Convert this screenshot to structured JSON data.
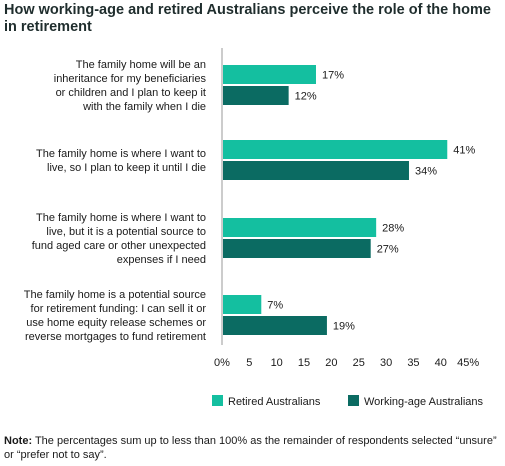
{
  "chart_data": {
    "type": "bar",
    "orientation": "horizontal",
    "title": "How working-age and retired Australians perceive the role of the home in retirement",
    "categories": [
      [
        "The family home will be an",
        "inheritance for my beneficiaries",
        "or children and I plan to keep it",
        "with the family when I die"
      ],
      [
        "The family home is where I want to",
        "live, so I plan to keep it until I die"
      ],
      [
        "The family home is where I want to",
        "live, but it is a potential source to",
        "fund aged care or other unexpected",
        "expenses if I need"
      ],
      [
        "The family home is a potential source",
        "for retirement funding: I can sell it or",
        "use home equity release schemes or",
        "reverse mortgages to fund retirement"
      ]
    ],
    "series": [
      {
        "name": "Retired Australians",
        "color": "#14bfa0",
        "values": [
          17,
          41,
          28,
          7
        ]
      },
      {
        "name": "Working-age Australians",
        "color": "#0b6b62",
        "values": [
          12,
          34,
          27,
          19
        ]
      }
    ],
    "value_labels": {
      "Retired Australians": [
        "17%",
        "41%",
        "28%",
        "7%"
      ],
      "Working-age Australians": [
        "12%",
        "34%",
        "27%",
        "19%"
      ]
    },
    "xlim": [
      0,
      45
    ],
    "xticks": [
      "0%",
      "5",
      "10",
      "15",
      "20",
      "25",
      "30",
      "35",
      "40",
      "45%"
    ],
    "grid": false,
    "legend_position": "bottom"
  },
  "note": {
    "label": "Note:",
    "text": " The percentages sum up to less than 100% as the remainder of respondents selected “unsure” or “prefer not to say”."
  }
}
